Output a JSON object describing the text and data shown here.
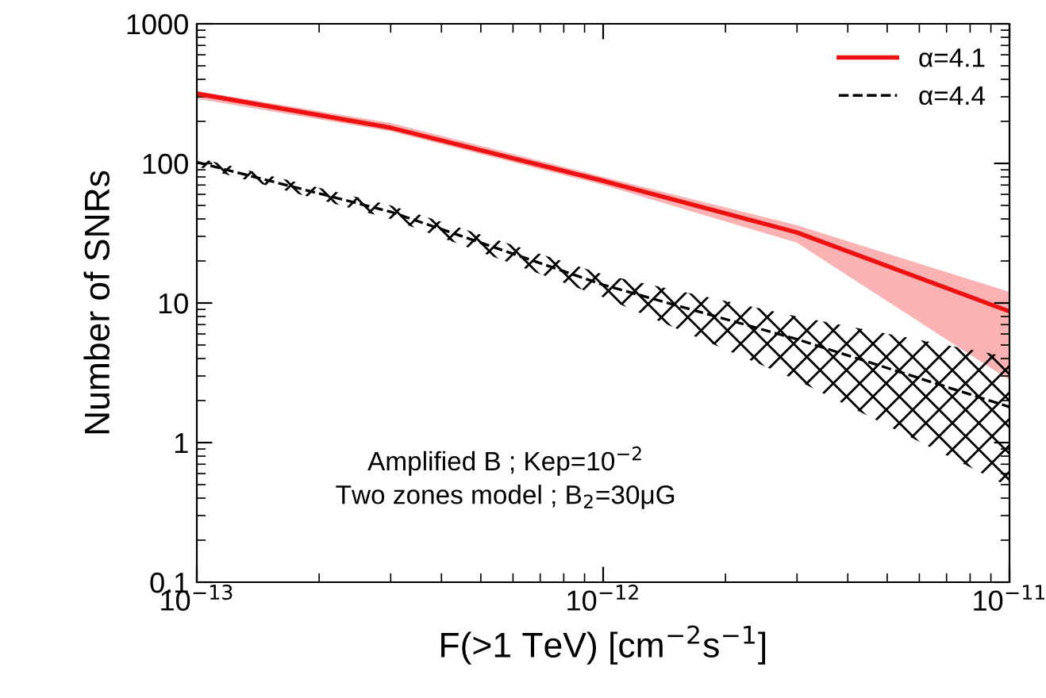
{
  "chart_data": {
    "type": "line",
    "xlabel": "F(>1 TeV) [cm$^{−2}$s$^{−1}$]",
    "ylabel": "Number of SNRs",
    "log": "xy",
    "xlim": [
      1e-13,
      1e-11
    ],
    "ylim": [
      0.1,
      1000
    ],
    "xticks": [
      {
        "value": 1e-13,
        "label": "10$^{−13}$"
      },
      {
        "value": 1e-12,
        "label": "10$^{−12}$"
      },
      {
        "value": 1e-11,
        "label": "10$^{−11}$"
      }
    ],
    "yticks": [
      {
        "value": 0.1,
        "label": "0.1"
      },
      {
        "value": 1,
        "label": "1"
      },
      {
        "value": 10,
        "label": "10"
      },
      {
        "value": 100,
        "label": "100"
      },
      {
        "value": 1000,
        "label": "1000"
      }
    ],
    "x": [
      1e-13,
      3e-13,
      1e-12,
      3e-12,
      1e-11
    ],
    "series": [
      {
        "name": "α=4.1",
        "color": "#ee1111",
        "line_style": "solid",
        "values": [
          316,
          180,
          75,
          32,
          8.7
        ],
        "lower": [
          290,
          170,
          70,
          27,
          2.8
        ],
        "upper": [
          330,
          195,
          80,
          36,
          12
        ]
      },
      {
        "name": "α=4.4",
        "color": "#000000",
        "line_style": "dashed",
        "values": [
          102,
          45,
          13.5,
          5.5,
          1.8
        ],
        "lower": [
          95,
          40,
          11,
          2.8,
          0.48
        ],
        "upper": [
          110,
          50,
          16,
          8,
          4.1
        ]
      }
    ],
    "legend": "top right",
    "grid": false,
    "annotations": [
      "Amplified B ; Kep=10$^{−2}$",
      "Two zones model ; B$_{2}$=30μG"
    ]
  }
}
